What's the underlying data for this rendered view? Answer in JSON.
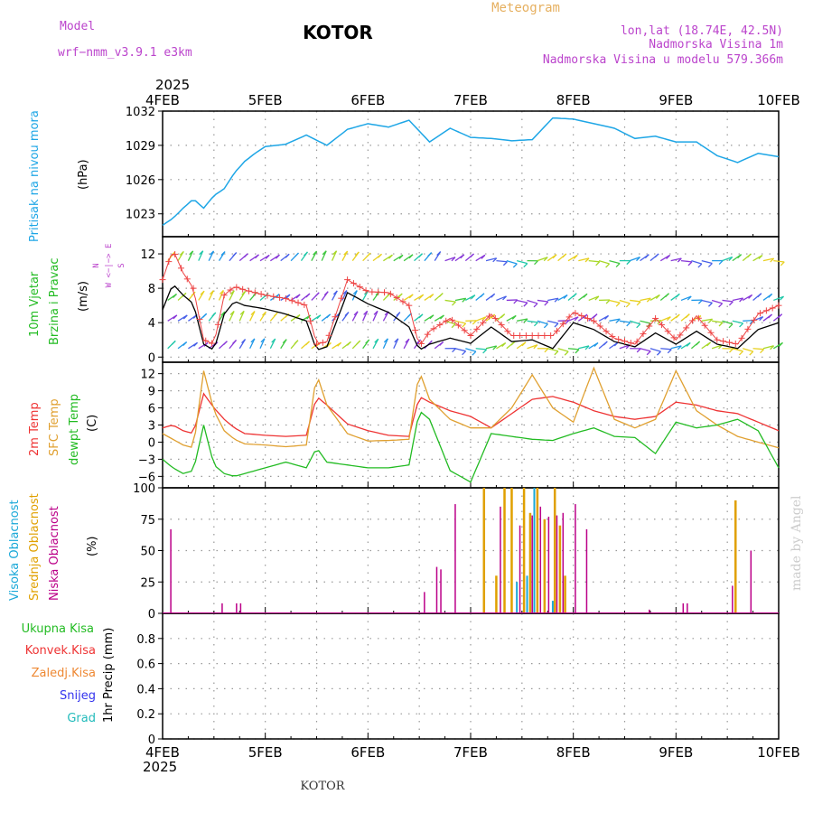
{
  "header": {
    "model_label": "Model",
    "model_name": "wrf−nmm_v3.9.1  e3km",
    "station": "KOTOR",
    "product": "Meteogram",
    "lonlat": "lon,lat (18.74E, 42.5N)",
    "elevation": "Nadmorska Visina 1m",
    "model_elevation": "Nadmorska Visina u modelu 579.366m",
    "year_top": "2025",
    "year_bottom": "2025",
    "footer_station": "KOTOR",
    "credit": "made by Angel"
  },
  "colors": {
    "pressure": "#1ea6e6",
    "temp2m": "#ee3333",
    "sfc_temp": "#e0a030",
    "dewpt": "#22bb22",
    "wind_speed": "#000000",
    "gust": "#ee4444",
    "cloud_high": "#1aa8d8",
    "cloud_mid": "#e0a000",
    "cloud_low": "#bb0088",
    "header_purple": "#bb44cc",
    "header_orange": "#e6b060",
    "credit": "#cccccc",
    "label_total": "#22bb22",
    "label_conv": "#ee3333",
    "label_frz": "#ee8833",
    "label_snow": "#3333ee",
    "label_grad": "#22bbbb"
  },
  "chart_data": [
    {
      "type": "line",
      "panel": "pressure",
      "title": "Pritisak na nivou mora",
      "ylabel": "(hPa)",
      "ylim": [
        1021,
        1032
      ],
      "yticks": [
        1023,
        1026,
        1029,
        1032
      ],
      "x_days": [
        0,
        0.1,
        0.2,
        0.3,
        0.4,
        0.5,
        0.6,
        0.7,
        0.8,
        0.9,
        1.0,
        1.2,
        1.4,
        1.6,
        1.8,
        2.0,
        2.2,
        2.4,
        2.6,
        2.8,
        3.0,
        3.2,
        3.4,
        3.6,
        3.8,
        4.0,
        4.2,
        4.4,
        4.6,
        4.8,
        5.0,
        5.2,
        5.4,
        5.6,
        5.8,
        6.0
      ],
      "values": [
        1022.0,
        1022.6,
        1023.5,
        1024.3,
        1023.5,
        1024.6,
        1025.2,
        1026.6,
        1027.6,
        1028.3,
        1028.9,
        1029.1,
        1029.9,
        1029.0,
        1030.4,
        1030.9,
        1030.6,
        1031.2,
        1029.3,
        1030.5,
        1029.7,
        1029.6,
        1029.4,
        1029.5,
        1031.4,
        1031.3,
        1030.9,
        1030.5,
        1029.6,
        1029.8,
        1029.3,
        1029.3,
        1028.1,
        1027.5,
        1028.3,
        1028.0
      ]
    },
    {
      "type": "line",
      "panel": "wind",
      "title": "10m Vjetar",
      "subtitle": "Brzina i Pravac",
      "ylabel": "(m/s)",
      "ylim": [
        -0.6,
        14
      ],
      "yticks": [
        0,
        4,
        8,
        12
      ],
      "direction_legend": [
        "N",
        "W <−|−> E",
        "S"
      ],
      "series": [
        {
          "name": "speed",
          "x_days": [
            0,
            0.1,
            0.2,
            0.3,
            0.4,
            0.5,
            0.6,
            0.7,
            0.8,
            1.0,
            1.2,
            1.4,
            1.5,
            1.6,
            1.8,
            2.0,
            2.2,
            2.4,
            2.5,
            2.6,
            2.8,
            3.0,
            3.2,
            3.4,
            3.6,
            3.8,
            4.0,
            4.2,
            4.4,
            4.6,
            4.8,
            5.0,
            5.2,
            5.4,
            5.6,
            5.8,
            6.0
          ],
          "values": [
            5.5,
            8.5,
            7.2,
            6.2,
            1.5,
            0.8,
            5.0,
            6.5,
            6.0,
            5.6,
            5.0,
            4.2,
            0.8,
            1.2,
            7.5,
            6.2,
            5.2,
            3.5,
            0.8,
            1.5,
            2.2,
            1.6,
            3.5,
            1.8,
            2.0,
            1.0,
            4.0,
            3.2,
            1.8,
            1.2,
            2.8,
            1.5,
            3.0,
            1.5,
            1.0,
            3.2,
            4.0
          ]
        },
        {
          "name": "gust",
          "x_days": [
            0,
            0.1,
            0.2,
            0.3,
            0.4,
            0.5,
            0.6,
            0.7,
            0.8,
            1.0,
            1.2,
            1.4,
            1.5,
            1.6,
            1.8,
            2.0,
            2.2,
            2.4,
            2.5,
            2.6,
            2.8,
            3.0,
            3.2,
            3.4,
            3.6,
            3.8,
            4.0,
            4.2,
            4.4,
            4.6,
            4.8,
            5.0,
            5.2,
            5.4,
            5.6,
            5.8,
            6.0
          ],
          "values": [
            9.0,
            12.5,
            9.8,
            8.0,
            2.0,
            1.5,
            7.2,
            8.2,
            7.8,
            7.2,
            6.8,
            6.0,
            1.5,
            1.8,
            9.0,
            7.6,
            7.5,
            6.0,
            1.2,
            3.0,
            4.5,
            2.5,
            5.0,
            2.5,
            2.5,
            2.5,
            5.2,
            4.2,
            2.2,
            1.5,
            4.5,
            2.0,
            4.8,
            2.0,
            1.5,
            5.0,
            6.0
          ]
        }
      ],
      "barb_levels_ms": [
        1,
        4.2,
        6.6,
        11.2
      ],
      "barb_columns": 60
    },
    {
      "type": "line",
      "panel": "temperature",
      "ylabel": "(C)",
      "legend": [
        "2m Temp",
        "SFC Temp",
        "dewpt Temp"
      ],
      "ylim": [
        -8,
        14
      ],
      "yticks": [
        -6,
        -3,
        0,
        3,
        6,
        9,
        12
      ],
      "x_days": [
        0,
        0.1,
        0.2,
        0.3,
        0.4,
        0.5,
        0.6,
        0.7,
        0.8,
        1.0,
        1.2,
        1.4,
        1.5,
        1.6,
        1.8,
        2.0,
        2.2,
        2.4,
        2.5,
        2.6,
        2.8,
        3.0,
        3.2,
        3.4,
        3.6,
        3.8,
        4.0,
        4.2,
        4.4,
        4.6,
        4.8,
        5.0,
        5.2,
        5.4,
        5.6,
        5.8,
        6.0
      ],
      "series": [
        {
          "name": "2m Temp",
          "values": [
            2.5,
            3.0,
            2.0,
            1.5,
            8.5,
            6.0,
            4.0,
            2.5,
            1.5,
            1.2,
            1.0,
            1.2,
            8.0,
            6.5,
            3.2,
            2.0,
            1.2,
            1.0,
            8.0,
            7.0,
            5.5,
            4.5,
            2.5,
            5.0,
            7.5,
            8.0,
            7.0,
            5.5,
            4.5,
            4.0,
            4.5,
            7.0,
            6.5,
            5.5,
            5.0,
            3.5,
            2.0
          ]
        },
        {
          "name": "SFC Temp",
          "values": [
            1.5,
            0.5,
            -0.5,
            -1.0,
            12.5,
            5.5,
            2.0,
            0.5,
            -0.3,
            -0.5,
            -0.8,
            -0.5,
            12.0,
            6.5,
            1.5,
            0.2,
            0.3,
            0.5,
            12.5,
            7.5,
            4.0,
            2.5,
            2.5,
            6.0,
            11.8,
            6.0,
            3.5,
            13.0,
            4.0,
            2.5,
            4.0,
            12.5,
            5.5,
            3.0,
            1.0,
            0.0,
            -1.0
          ]
        },
        {
          "name": "dewpt Temp",
          "values": [
            -3.0,
            -4.5,
            -5.5,
            -5.0,
            3.0,
            -4.0,
            -5.5,
            -6.0,
            -5.5,
            -4.5,
            -3.5,
            -4.5,
            -1.0,
            -3.5,
            -4.0,
            -4.5,
            -4.5,
            -4.0,
            5.5,
            4.0,
            -5.0,
            -7.0,
            1.5,
            1.0,
            0.5,
            0.3,
            1.5,
            2.5,
            1.0,
            0.8,
            -2.0,
            3.5,
            2.5,
            3.0,
            4.0,
            2.0,
            -4.5
          ]
        }
      ]
    },
    {
      "type": "bar",
      "panel": "clouds",
      "ylabel": "(%)",
      "legend": [
        "Visoka Oblacnost",
        "Srednja Oblacnost",
        "Niska Oblacnost"
      ],
      "ylim": [
        0,
        100
      ],
      "yticks": [
        0,
        25,
        50,
        75,
        100
      ],
      "series": [
        {
          "name": "Visoka Oblacnost",
          "x_days": [
            3.45,
            3.55,
            3.62,
            3.8
          ],
          "values": [
            25,
            30,
            100,
            10
          ]
        },
        {
          "name": "Srednja Oblacnost",
          "x_days": [
            3.13,
            3.25,
            3.33,
            3.4,
            3.52,
            3.58,
            3.65,
            3.72,
            3.82,
            3.87,
            3.92,
            5.58
          ],
          "values": [
            100,
            30,
            100,
            100,
            100,
            80,
            100,
            75,
            100,
            70,
            30,
            90
          ]
        },
        {
          "name": "Niska Oblacnost",
          "x_days": [
            0.08,
            0.58,
            0.72,
            0.76,
            2.55,
            2.67,
            2.71,
            2.85,
            3.29,
            3.48,
            3.6,
            3.68,
            3.76,
            3.84,
            3.9,
            4.02,
            4.13,
            4.74,
            5.07,
            5.11,
            5.55,
            5.73
          ],
          "values": [
            67,
            8,
            8,
            8,
            17,
            37,
            35,
            87,
            85,
            70,
            78,
            85,
            77,
            78,
            80,
            87,
            67,
            3,
            8,
            8,
            22,
            50
          ]
        }
      ]
    },
    {
      "type": "bar",
      "panel": "precipitation",
      "ylabel": "1hr Precip (mm)",
      "legend": [
        "Ukupna  Kisa",
        "Konvek.Kisa",
        "Zaledj.Kisa",
        "Snijeg",
        "Grad"
      ],
      "ylim": [
        0,
        1.0
      ],
      "yticks": [
        0,
        0.2,
        0.4,
        0.6,
        0.8
      ],
      "series": []
    }
  ],
  "xaxis": {
    "days": [
      0,
      1,
      2,
      3,
      4,
      5,
      6
    ],
    "labels": [
      "4FEB",
      "5FEB",
      "6FEB",
      "7FEB",
      "8FEB",
      "9FEB",
      "10FEB"
    ]
  }
}
